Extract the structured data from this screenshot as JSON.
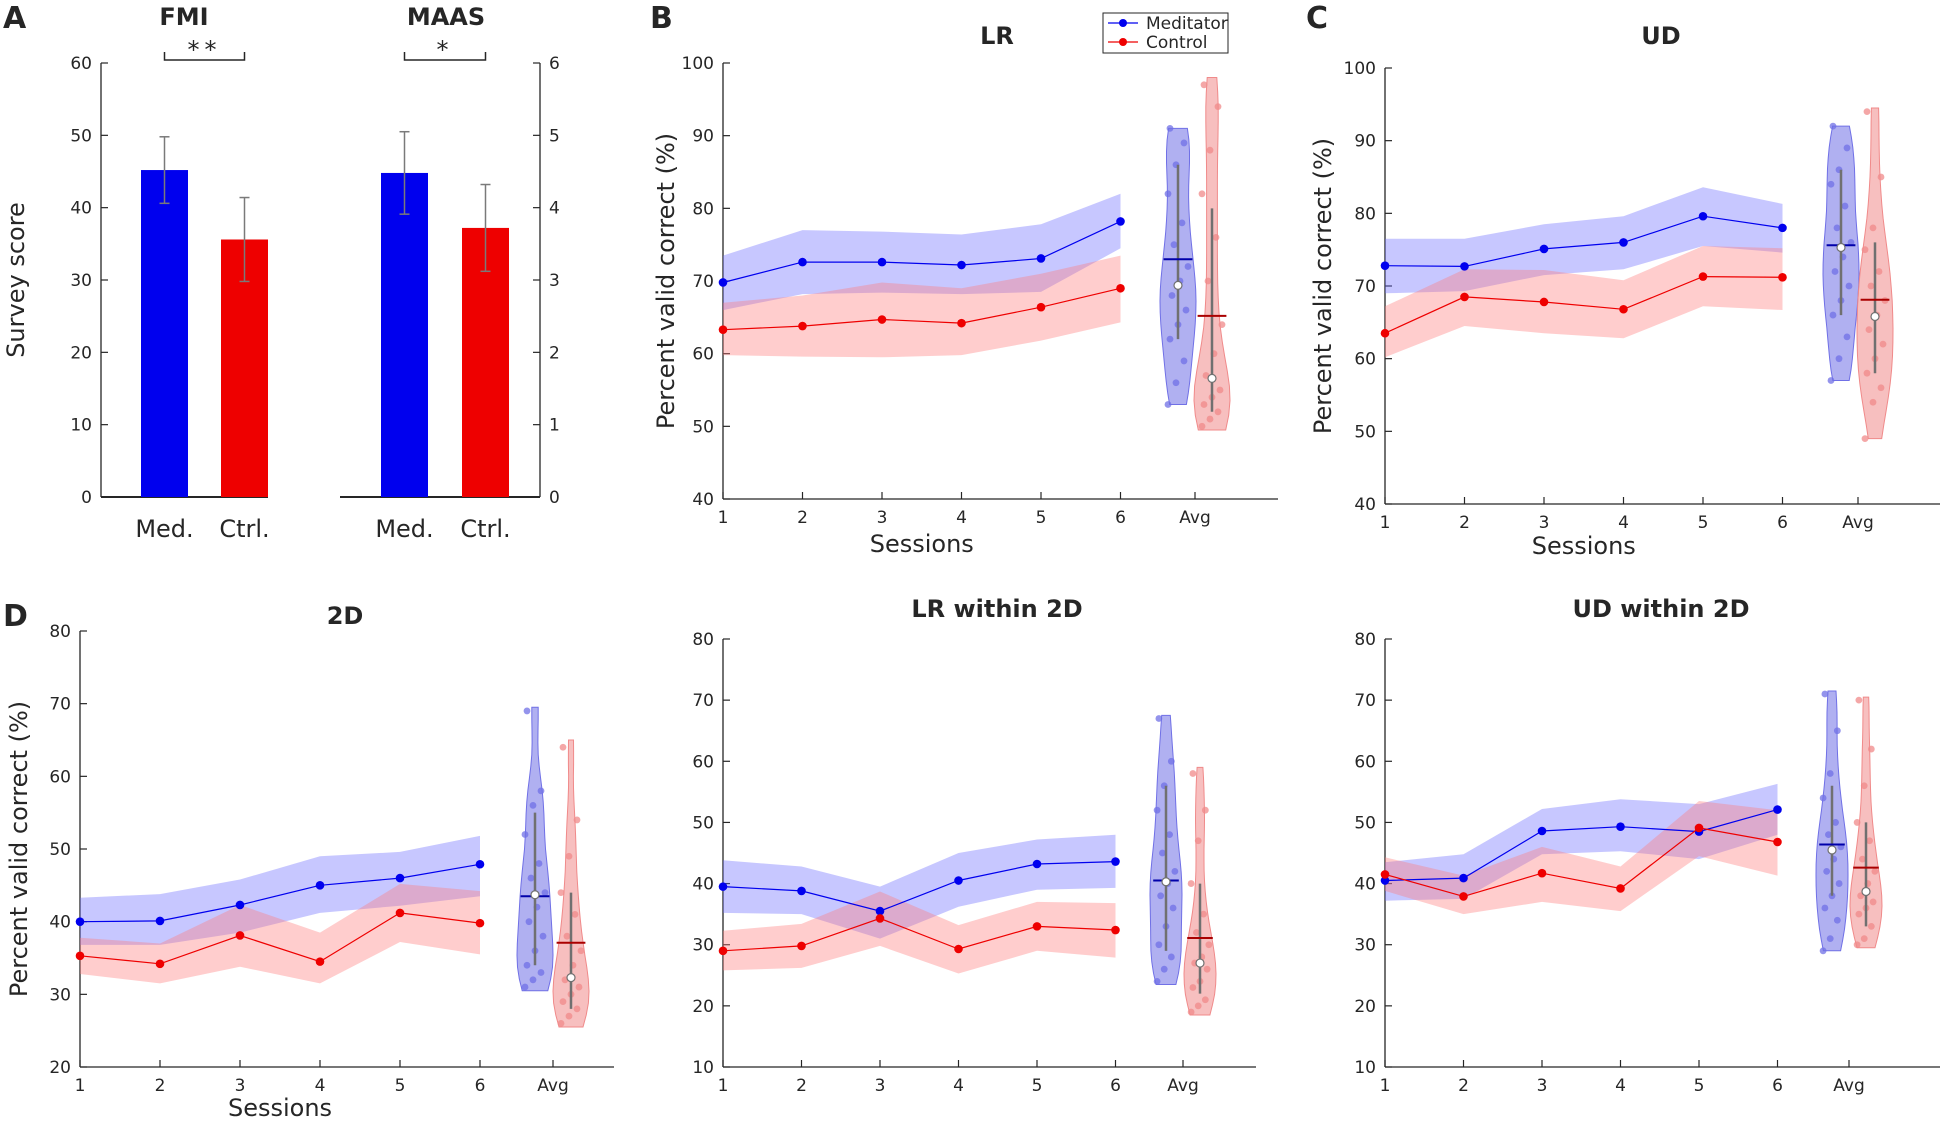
{
  "colors": {
    "meditator": "#0000ee",
    "control": "#ee0000",
    "meditator_band": "#6b6bff",
    "control_band": "#ff7b7b",
    "meditator_violin": "#7070e6",
    "control_violin": "#f08a8a",
    "axis": "#262626"
  },
  "legend": {
    "meditator": "Meditator",
    "control": "Control"
  },
  "chart_data": [
    {
      "id": "A-FMI",
      "panel_letter": "A",
      "type": "bar",
      "title": "FMI",
      "ylabel": "Survey score",
      "ylim": [
        0,
        60
      ],
      "yticks": [
        0,
        10,
        20,
        30,
        40,
        50,
        60
      ],
      "categories": [
        "Med.",
        "Ctrl."
      ],
      "values": [
        45.2,
        35.6
      ],
      "errors": [
        4.6,
        5.8
      ],
      "bar_colors": [
        "#0000ee",
        "#ee0000"
      ],
      "significance": "**"
    },
    {
      "id": "A-MAAS",
      "type": "bar",
      "title": "MAAS",
      "ylabel": "",
      "ylim": [
        0,
        6
      ],
      "yticks": [
        0,
        1,
        2,
        3,
        4,
        5,
        6
      ],
      "categories": [
        "Med.",
        "Ctrl."
      ],
      "values": [
        4.48,
        3.72
      ],
      "errors": [
        0.57,
        0.6
      ],
      "bar_colors": [
        "#0000ee",
        "#ee0000"
      ],
      "significance": "*"
    },
    {
      "id": "B",
      "panel_letter": "B",
      "type": "line",
      "title": "LR",
      "xlabel": "Sessions",
      "ylabel": "Percent valid correct (%)",
      "ylim": [
        40,
        100
      ],
      "yticks": [
        40,
        50,
        60,
        70,
        80,
        90,
        100
      ],
      "x": [
        "1",
        "2",
        "3",
        "4",
        "5",
        "6"
      ],
      "avg_label": "Avg",
      "show_legend": true,
      "series": [
        {
          "name": "Meditator",
          "values": [
            69.8,
            72.6,
            72.6,
            72.2,
            73.1,
            78.2
          ],
          "lower": [
            66.0,
            68.2,
            68.4,
            68.2,
            68.5,
            74.5
          ],
          "upper": [
            73.5,
            77.0,
            76.8,
            76.4,
            77.8,
            82.0
          ],
          "violin": {
            "min": 53,
            "max": 91,
            "median": 69.4,
            "mean": 73,
            "q1": 62,
            "q3": 86,
            "points": [
              53,
              56,
              59,
              62,
              64,
              66,
              68,
              70,
              72,
              75,
              78,
              82,
              86,
              89,
              91
            ]
          }
        },
        {
          "name": "Control",
          "values": [
            63.3,
            63.8,
            64.7,
            64.2,
            66.4,
            69.0
          ],
          "lower": [
            59.8,
            59.6,
            59.5,
            59.8,
            61.8,
            64.3
          ],
          "upper": [
            67.0,
            68.0,
            69.8,
            69.0,
            71.0,
            73.5
          ],
          "violin": {
            "min": 49.5,
            "max": 98,
            "median": 56.6,
            "mean": 65.2,
            "q1": 52,
            "q3": 80,
            "points": [
              50,
              51,
              52,
              53,
              54,
              55,
              57,
              60,
              64,
              70,
              76,
              82,
              88,
              94,
              97
            ]
          }
        }
      ]
    },
    {
      "id": "C",
      "panel_letter": "C",
      "type": "line",
      "title": "UD",
      "xlabel": "Sessions",
      "ylabel": "Percent valid correct (%)",
      "ylim": [
        40,
        100
      ],
      "yticks": [
        40,
        50,
        60,
        70,
        80,
        90,
        100
      ],
      "x": [
        "1",
        "2",
        "3",
        "4",
        "5",
        "6"
      ],
      "avg_label": "Avg",
      "series": [
        {
          "name": "Meditator",
          "values": [
            72.8,
            72.7,
            75.1,
            76.0,
            79.6,
            78.0
          ],
          "lower": [
            69.0,
            69.3,
            71.5,
            72.3,
            75.5,
            74.6
          ],
          "upper": [
            76.5,
            76.5,
            78.5,
            79.6,
            83.6,
            81.3
          ],
          "violin": {
            "min": 57,
            "max": 92,
            "median": 75.3,
            "mean": 75.6,
            "q1": 66,
            "q3": 86,
            "points": [
              57,
              60,
              63,
              66,
              68,
              70,
              72,
              74,
              76,
              78,
              81,
              84,
              86,
              89,
              92
            ]
          }
        },
        {
          "name": "Control",
          "values": [
            63.5,
            68.5,
            67.8,
            66.8,
            71.3,
            71.2
          ],
          "lower": [
            60.2,
            64.5,
            63.5,
            62.8,
            67.2,
            66.7
          ],
          "upper": [
            67.2,
            72.3,
            72.2,
            70.8,
            75.5,
            75.2
          ],
          "violin": {
            "min": 49,
            "max": 94.5,
            "median": 65.8,
            "mean": 68.1,
            "q1": 58,
            "q3": 76,
            "points": [
              49,
              54,
              56,
              58,
              60,
              62,
              64,
              66,
              68,
              70,
              72,
              75,
              78,
              85,
              94
            ]
          }
        }
      ]
    },
    {
      "id": "D-2D",
      "panel_letter": "D",
      "type": "line",
      "title": "2D",
      "xlabel": "Sessions",
      "ylabel": "Percent valid correct (%)",
      "ylim": [
        20,
        80
      ],
      "yticks": [
        20,
        30,
        40,
        50,
        60,
        70,
        80
      ],
      "x": [
        "1",
        "2",
        "3",
        "4",
        "5",
        "6"
      ],
      "avg_label": "Avg",
      "series": [
        {
          "name": "Meditator",
          "values": [
            40.0,
            40.1,
            42.3,
            45.0,
            46.0,
            47.9
          ],
          "lower": [
            36.8,
            36.8,
            38.5,
            41.2,
            42.2,
            43.5
          ],
          "upper": [
            43.3,
            43.8,
            45.8,
            49.0,
            49.6,
            51.8
          ],
          "violin": {
            "min": 30.5,
            "max": 69.5,
            "median": 43.7,
            "mean": 43.5,
            "q1": 34,
            "q3": 55,
            "points": [
              31,
              32,
              33,
              34,
              36,
              38,
              40,
              42,
              44,
              46,
              48,
              52,
              56,
              58,
              69
            ]
          }
        },
        {
          "name": "Control",
          "values": [
            35.3,
            34.2,
            38.1,
            34.5,
            41.2,
            39.8
          ],
          "lower": [
            32.8,
            31.5,
            33.8,
            31.5,
            37.2,
            35.5
          ],
          "upper": [
            37.8,
            37.0,
            42.3,
            38.5,
            45.2,
            44.2
          ],
          "violin": {
            "min": 25.5,
            "max": 65,
            "median": 32.3,
            "mean": 37.1,
            "q1": 28,
            "q3": 44,
            "points": [
              26,
              27,
              28,
              29,
              30,
              31,
              32,
              34,
              36,
              38,
              41,
              44,
              49,
              54,
              64
            ]
          }
        }
      ]
    },
    {
      "id": "D-LR2D",
      "type": "line",
      "title": "LR within 2D",
      "xlabel": "",
      "ylabel": "",
      "ylim": [
        10,
        80
      ],
      "yticks": [
        10,
        20,
        30,
        40,
        50,
        60,
        70,
        80
      ],
      "x": [
        "1",
        "2",
        "3",
        "4",
        "5",
        "6"
      ],
      "avg_label": "Avg",
      "series": [
        {
          "name": "Meditator",
          "values": [
            39.5,
            38.8,
            35.5,
            40.5,
            43.2,
            43.6
          ],
          "lower": [
            35.2,
            35.0,
            31.0,
            36.2,
            39.0,
            39.3
          ],
          "upper": [
            43.8,
            42.8,
            39.5,
            45.0,
            47.2,
            48.0
          ],
          "violin": {
            "min": 23.5,
            "max": 67.5,
            "median": 40.3,
            "mean": 40.5,
            "q1": 29,
            "q3": 56,
            "points": [
              24,
              26,
              28,
              30,
              33,
              36,
              38,
              40,
              42,
              45,
              48,
              52,
              56,
              60,
              67
            ]
          }
        },
        {
          "name": "Control",
          "values": [
            29.0,
            29.8,
            34.3,
            29.3,
            33.0,
            32.4
          ],
          "lower": [
            25.8,
            26.2,
            29.8,
            25.3,
            29.0,
            27.9
          ],
          "upper": [
            32.3,
            33.4,
            38.7,
            33.2,
            37.0,
            36.8
          ],
          "violin": {
            "min": 18.5,
            "max": 59,
            "median": 27,
            "mean": 31.1,
            "q1": 22,
            "q3": 40,
            "points": [
              19,
              20,
              21,
              23,
              24,
              26,
              27,
              28,
              30,
              32,
              35,
              40,
              47,
              52,
              58
            ]
          }
        }
      ]
    },
    {
      "id": "D-UD2D",
      "type": "line",
      "title": "UD within 2D",
      "xlabel": "",
      "ylabel": "",
      "ylim": [
        10,
        80
      ],
      "yticks": [
        10,
        20,
        30,
        40,
        50,
        60,
        70,
        80
      ],
      "x": [
        "1",
        "2",
        "3",
        "4",
        "5",
        "6"
      ],
      "avg_label": "Avg",
      "series": [
        {
          "name": "Meditator",
          "values": [
            40.5,
            40.9,
            48.6,
            49.3,
            48.5,
            52.1
          ],
          "lower": [
            37.2,
            37.5,
            44.8,
            45.3,
            44.0,
            48.0
          ],
          "upper": [
            43.5,
            44.8,
            52.2,
            53.8,
            53.0,
            56.3
          ],
          "violin": {
            "min": 29,
            "max": 71.5,
            "median": 45.5,
            "mean": 46.4,
            "q1": 38,
            "q3": 56,
            "points": [
              29,
              31,
              34,
              36,
              38,
              40,
              42,
              44,
              46,
              48,
              50,
              54,
              58,
              65,
              71
            ]
          }
        },
        {
          "name": "Control",
          "values": [
            41.5,
            37.9,
            41.7,
            39.2,
            49.1,
            46.8
          ],
          "lower": [
            38.8,
            35.0,
            37.0,
            35.5,
            44.5,
            41.3
          ],
          "upper": [
            44.3,
            41.3,
            46.0,
            42.8,
            53.5,
            52.0
          ],
          "violin": {
            "min": 29.5,
            "max": 70.5,
            "median": 38.7,
            "mean": 42.6,
            "q1": 33,
            "q3": 50,
            "points": [
              30,
              31,
              33,
              35,
              36,
              37,
              38,
              40,
              42,
              44,
              47,
              50,
              56,
              62,
              70
            ]
          }
        }
      ]
    }
  ]
}
